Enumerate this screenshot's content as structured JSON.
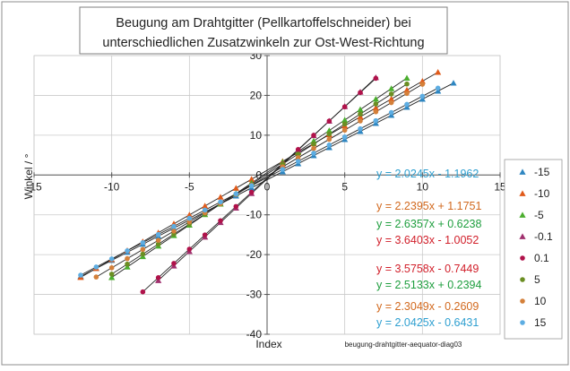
{
  "chart_data": {
    "type": "scatter",
    "title_lines": [
      "Beugung am Drahtgitter (Pellkartoffelschneider) bei",
      "unterschiedlichen Zusatzwinkeln  zur Ost-West-Richtung"
    ],
    "xlabel": "Index",
    "ylabel": "Winkel / °",
    "footer": "beugung-drahtgitter-aequator-diag03",
    "xlim": [
      -15,
      15
    ],
    "ylim": [
      -40,
      30
    ],
    "x_ticks": [
      -15,
      -10,
      -5,
      0,
      5,
      10,
      15
    ],
    "y_ticks": [
      -40,
      -30,
      -20,
      -10,
      0,
      10,
      20,
      30
    ],
    "grid": true,
    "legend_position": "right",
    "series": [
      {
        "name": "-15",
        "color": "#2E86C1",
        "marker": "triangle",
        "slope": 2.0245,
        "intercept": -1.1962,
        "x": [
          -12,
          -11,
          -10,
          -9,
          -8,
          -7,
          -6,
          -5,
          -4,
          -3,
          -2,
          -1,
          1,
          2,
          3,
          4,
          5,
          6,
          7,
          8,
          9,
          10,
          11,
          12
        ]
      },
      {
        "name": "-10",
        "color": "#E05A1A",
        "marker": "triangle",
        "slope": 2.2395,
        "intercept": 1.1751,
        "x": [
          -12,
          -11,
          -10,
          -9,
          -8,
          -7,
          -6,
          -5,
          -4,
          -3,
          -2,
          -1,
          1,
          2,
          3,
          4,
          5,
          6,
          7,
          8,
          9,
          10,
          11
        ]
      },
      {
        "name": "-5",
        "color": "#4BAE2E",
        "marker": "triangle",
        "slope": 2.6357,
        "intercept": 0.6238,
        "x": [
          -10,
          -9,
          -8,
          -7,
          -6,
          -5,
          -4,
          -3,
          -2,
          -1,
          1,
          2,
          3,
          4,
          5,
          6,
          7,
          8,
          9
        ]
      },
      {
        "name": "-0.1",
        "color": "#A0306E",
        "marker": "triangle",
        "slope": 3.6403,
        "intercept": -1.0052,
        "x": [
          -7,
          -6,
          -5,
          -4,
          -3,
          -2,
          -1,
          1,
          2,
          3,
          4,
          5,
          6,
          7
        ]
      },
      {
        "name": "0.1",
        "color": "#B0124A",
        "marker": "circle",
        "slope": 3.5758,
        "intercept": -0.7449,
        "x": [
          -8,
          -7,
          -6,
          -5,
          -4,
          -3,
          -2,
          -1,
          1,
          2,
          3,
          4,
          5,
          6,
          7
        ]
      },
      {
        "name": "5",
        "color": "#6B8E23",
        "marker": "circle",
        "slope": 2.5133,
        "intercept": 0.2394,
        "x": [
          -10,
          -9,
          -8,
          -7,
          -6,
          -5,
          -4,
          -3,
          -2,
          -1,
          1,
          2,
          3,
          4,
          5,
          6,
          7,
          8,
          9
        ]
      },
      {
        "name": "10",
        "color": "#D4803A",
        "marker": "circle",
        "slope": 2.3049,
        "intercept": -0.2609,
        "x": [
          -11,
          -10,
          -9,
          -8,
          -7,
          -6,
          -5,
          -4,
          -3,
          -2,
          -1,
          1,
          2,
          3,
          4,
          5,
          6,
          7,
          8,
          9,
          10
        ]
      },
      {
        "name": "15",
        "color": "#5DADE2",
        "marker": "circle",
        "slope": 2.0425,
        "intercept": -0.6431,
        "x": [
          -12,
          -11,
          -10,
          -9,
          -8,
          -7,
          -6,
          -5,
          -4,
          -3,
          -2,
          -1,
          1,
          2,
          3,
          4,
          5,
          6,
          7,
          8,
          9,
          10,
          11
        ]
      }
    ],
    "equations": [
      {
        "text": "y = 2.0245x - 1.1962",
        "color": "#2E9FD0"
      },
      {
        "text": "y = 2.2395x + 1.1751",
        "color": "#D2691E"
      },
      {
        "text": "y = 2.6357x + 0.6238",
        "color": "#1E9E3E"
      },
      {
        "text": "y = 3.6403x - 1.0052",
        "color": "#D11F2A"
      },
      {
        "text": "y = 3.5758x - 0.7449",
        "color": "#D11F2A"
      },
      {
        "text": "y = 2.5133x + 0.2394",
        "color": "#1E9E3E"
      },
      {
        "text": "y = 2.3049x - 0.2609",
        "color": "#D2691E"
      },
      {
        "text": "y = 2.0425x - 0.6431",
        "color": "#2E9FD0"
      }
    ]
  }
}
